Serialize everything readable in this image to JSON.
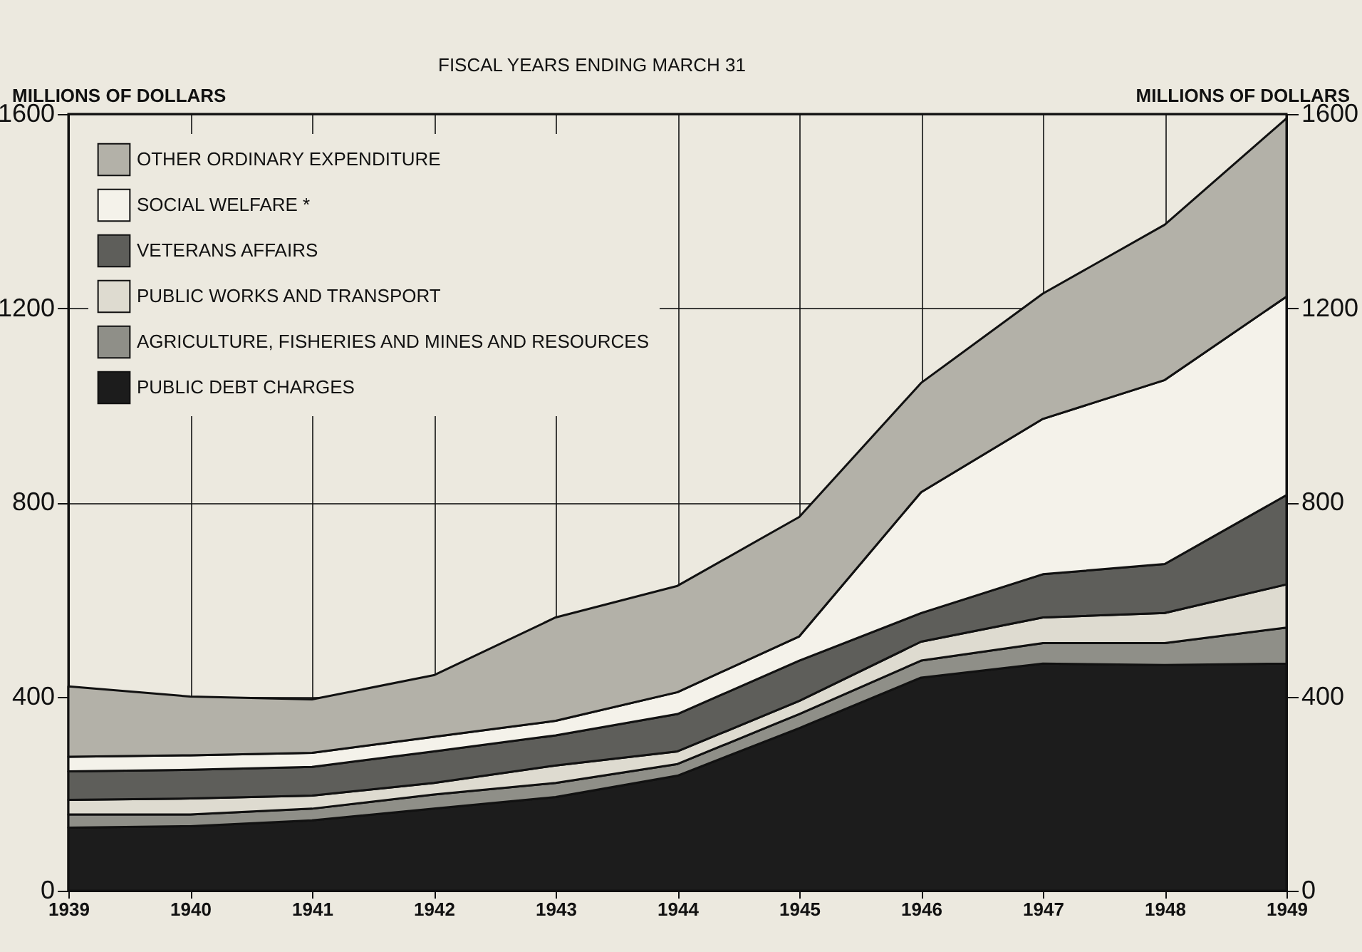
{
  "chart_data": {
    "type": "area",
    "stacked": true,
    "title": "FISCAL YEARS ENDING MARCH 31",
    "ylabel": "MILLIONS OF DOLLARS",
    "y2label": "MILLIONS OF DOLLARS",
    "x": [
      1939,
      1940,
      1941,
      1942,
      1943,
      1944,
      1945,
      1946,
      1947,
      1948,
      1949
    ],
    "xlim": [
      1939,
      1949
    ],
    "xticks": [
      1939,
      1940,
      1941,
      1942,
      1943,
      1944,
      1945,
      1946,
      1947,
      1948,
      1949
    ],
    "ylim": [
      0,
      1600
    ],
    "yticks": [
      0,
      400,
      800,
      1200,
      1600
    ],
    "y2lim": [
      0,
      1600
    ],
    "y2ticks": [
      0,
      400,
      800,
      1200,
      1600
    ],
    "grid": true,
    "legend": "top left",
    "series": [
      {
        "name": "PUBLIC DEBT CHARGES",
        "color": "#1c1c1c",
        "values": [
          130,
          133,
          145,
          169,
          193,
          237,
          335,
          439,
          468,
          465,
          468
        ]
      },
      {
        "name": "AGRICULTURE, FISHERIES AND MINES AND RESOURCES",
        "color": "#8f8f88",
        "values": [
          27,
          24,
          24,
          29,
          29,
          24,
          29,
          35,
          42,
          45,
          74
        ]
      },
      {
        "name": "PUBLIC WORKS AND TRANSPORT",
        "color": "#dedbd0",
        "values": [
          30,
          33,
          27,
          24,
          36,
          26,
          27,
          39,
          53,
          62,
          89
        ]
      },
      {
        "name": "VETERANS AFFAIRS",
        "color": "#5e5e5a",
        "values": [
          59,
          59,
          59,
          65,
          62,
          77,
          83,
          59,
          89,
          101,
          184
        ]
      },
      {
        "name": "SOCIAL WELFARE *",
        "color": "#f4f2ea",
        "values": [
          30,
          30,
          29,
          30,
          30,
          45,
          50,
          249,
          320,
          379,
          409
        ]
      },
      {
        "name": "OTHER ORDINARY EXPENDITURE",
        "color": "#b3b1a8",
        "values": [
          145,
          121,
          110,
          127,
          213,
          219,
          246,
          225,
          258,
          320,
          367
        ]
      }
    ]
  }
}
